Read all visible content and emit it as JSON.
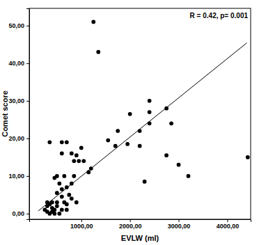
{
  "chart_data": {
    "type": "scatter",
    "annotation": "R = 0.42, p= 0.001",
    "x_label": "EVLW (ml)",
    "y_label": "Comet score",
    "color": "#000000",
    "marker": "circle",
    "x": [
      1250,
      1350,
      2400,
      2400,
      2750,
      2850,
      2000,
      2400,
      2200,
      1750,
      1550,
      1700,
      2200,
      1950,
      3000,
      3200,
      2750,
      2300,
      4420,
      1200,
      1150,
      1050,
      1000,
      900,
      800,
      850,
      950,
      600,
      600,
      700,
      350,
      500,
      450,
      550,
      650,
      600,
      700,
      500,
      600,
      750,
      800,
      850,
      800,
      900,
      700,
      650,
      500,
      400,
      350,
      300,
      250,
      300,
      400,
      450,
      500,
      350,
      450,
      550,
      600,
      700,
      300,
      400
    ],
    "values": [
      51,
      43,
      30,
      27,
      28,
      24,
      26.5,
      24,
      22,
      22,
      19.5,
      18,
      18,
      18.5,
      13,
      10,
      15.5,
      8.5,
      15,
      12,
      11,
      14,
      17.5,
      15.5,
      16,
      14,
      14,
      19,
      16,
      19,
      19,
      10,
      9.5,
      8,
      10,
      6.5,
      7,
      5.5,
      4.5,
      5,
      8,
      10,
      4,
      3,
      2.5,
      3,
      3,
      3,
      2.5,
      2,
      1,
      0.5,
      0.5,
      1,
      2,
      0,
      0,
      0,
      1,
      1,
      3,
      1.5
    ],
    "fit_line": {
      "x": [
        115,
        4400
      ],
      "y": [
        0.7,
        45.4
      ],
      "line_style": "solid"
    },
    "xlim": [
      -70,
      4480
    ],
    "ylim": [
      -1.5,
      54.6
    ],
    "xticks": [
      {
        "value": 1000,
        "label": "1000,00"
      },
      {
        "value": 2000,
        "label": "2000,00"
      },
      {
        "value": 3000,
        "label": "3000,00"
      },
      {
        "value": 4000,
        "label": "4000,00"
      }
    ],
    "yticks": [
      {
        "value": 0,
        "label": "0,00"
      },
      {
        "value": 10,
        "label": "10,00"
      },
      {
        "value": 20,
        "label": "20,00"
      },
      {
        "value": 30,
        "label": "30,00"
      },
      {
        "value": 40,
        "label": "40,00"
      },
      {
        "value": 50,
        "label": "50,00"
      }
    ],
    "grid": false
  }
}
